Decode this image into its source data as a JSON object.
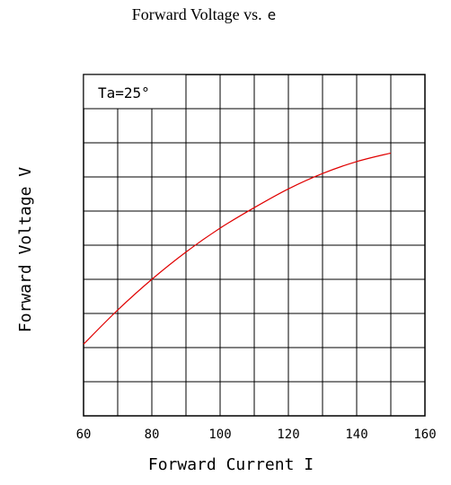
{
  "chart_data": {
    "type": "line",
    "title": "Forward Voltage vs.",
    "title_suffix": "e",
    "xlabel": "Forward Current I",
    "ylabel": "Forward Voltage V",
    "annotation": "Ta=25°",
    "xlim": [
      60,
      160
    ],
    "x_ticks": [
      "60",
      "80",
      "100",
      "120",
      "140",
      "160"
    ],
    "y_grid_divisions": 10,
    "x_grid_divisions": 10,
    "grid": true,
    "series": [
      {
        "color": "#e00000",
        "x": [
          60,
          70,
          80,
          90,
          100,
          110,
          120,
          130,
          140,
          150
        ],
        "y_fraction": [
          0.21,
          0.31,
          0.4,
          0.48,
          0.55,
          0.61,
          0.665,
          0.71,
          0.745,
          0.77
        ]
      }
    ]
  }
}
